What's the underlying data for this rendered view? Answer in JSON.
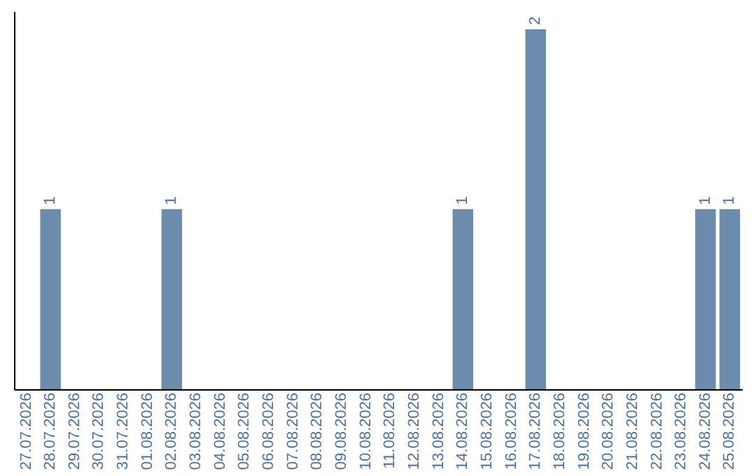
{
  "chart_data": {
    "type": "bar",
    "categories": [
      "27.07.2026",
      "28.07.2026",
      "29.07.2026",
      "30.07.2026",
      "31.07.2026",
      "01.08.2026",
      "02.08.2026",
      "03.08.2026",
      "04.08.2026",
      "05.08.2026",
      "06.08.2026",
      "07.08.2026",
      "08.08.2026",
      "09.08.2026",
      "10.08.2026",
      "11.08.2026",
      "12.08.2026",
      "13.08.2026",
      "14.08.2026",
      "15.08.2026",
      "16.08.2026",
      "17.08.2026",
      "18.08.2026",
      "19.08.2026",
      "20.08.2026",
      "21.08.2026",
      "22.08.2026",
      "23.08.2026",
      "24.08.2026",
      "25.08.2026"
    ],
    "values": [
      0,
      1,
      0,
      0,
      0,
      0,
      1,
      0,
      0,
      0,
      0,
      0,
      0,
      0,
      0,
      0,
      0,
      0,
      1,
      0,
      0,
      2,
      0,
      0,
      0,
      0,
      0,
      0,
      1,
      1
    ],
    "value_labels": [
      null,
      "1",
      null,
      null,
      null,
      null,
      "1",
      null,
      null,
      null,
      null,
      null,
      null,
      null,
      null,
      null,
      null,
      null,
      "1",
      null,
      null,
      "2",
      null,
      null,
      null,
      null,
      null,
      null,
      "1",
      "1"
    ],
    "color": "#6b8cac",
    "ylim": [
      0,
      2.1
    ],
    "grid": false
  }
}
